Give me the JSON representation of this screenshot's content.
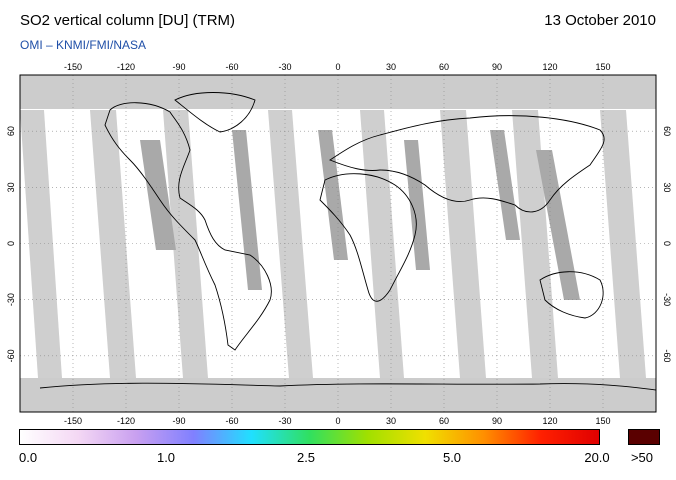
{
  "header": {
    "title": "SO2 vertical column [DU] (TRM)",
    "date": "13 October 2010",
    "source": "OMI  –  KNMI/FMI/NASA"
  },
  "map": {
    "projection": "equirectangular",
    "lon_ticks": [
      -150,
      -120,
      -90,
      -60,
      -30,
      0,
      30,
      60,
      90,
      120,
      150
    ],
    "lat_ticks": [
      60,
      30,
      0,
      -30,
      -60
    ],
    "no_data_color": "#cccccc",
    "swath_gap_color": "#bbbbbb"
  },
  "colorbar": {
    "labels": [
      "0.0",
      "1.0",
      "2.5",
      "5.0",
      "20.0",
      ">50"
    ],
    "colors": [
      "#ffffff",
      "#f4d8f4",
      "#c9a0f0",
      "#8080ff",
      "#20e0ff",
      "#30e060",
      "#a0e000",
      "#f0e000",
      "#ff9000",
      "#ff2000",
      "#e00000"
    ],
    "overflow_color": "#5a0000"
  }
}
